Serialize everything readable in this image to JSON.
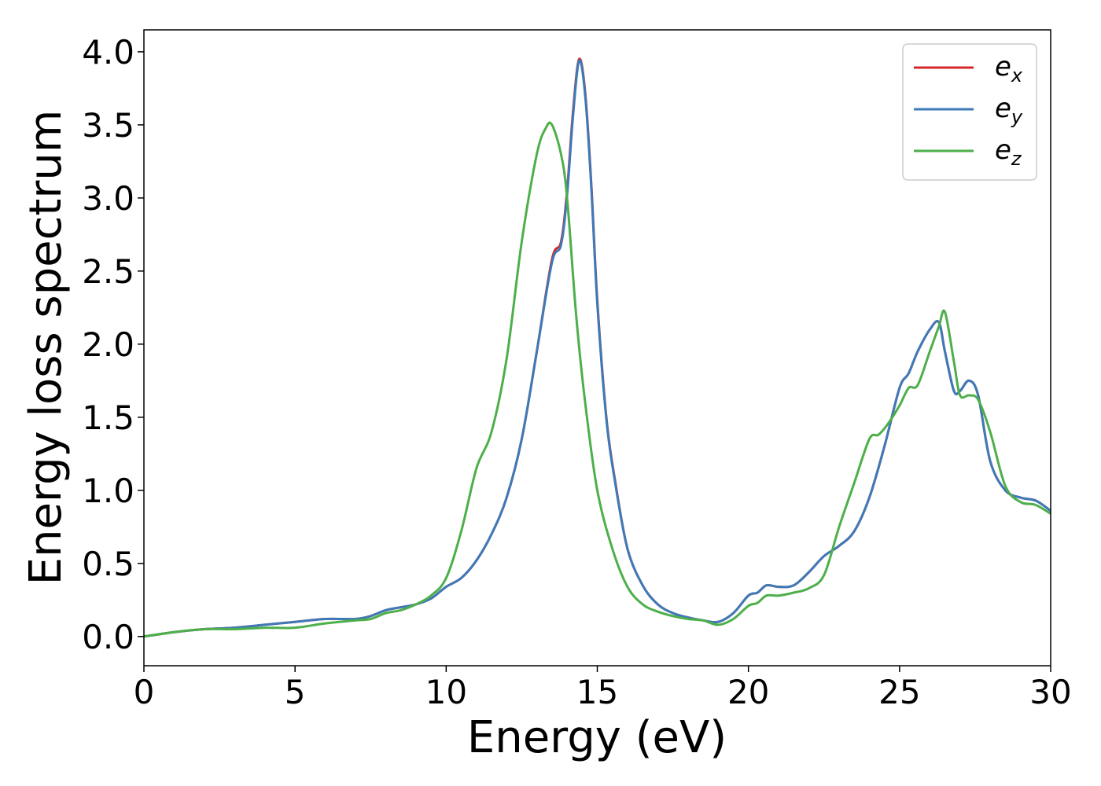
{
  "chart_data": {
    "type": "line",
    "xlabel": "Energy (eV)",
    "ylabel": "Energy loss spectrum",
    "xlim": [
      0,
      30
    ],
    "ylim": [
      -0.2,
      4.15
    ],
    "xticks": [
      0,
      5,
      10,
      15,
      20,
      25,
      30
    ],
    "xtick_labels": [
      "0",
      "5",
      "10",
      "15",
      "20",
      "25",
      "30"
    ],
    "yticks": [
      0.0,
      0.5,
      1.0,
      1.5,
      2.0,
      2.5,
      3.0,
      3.5,
      4.0
    ],
    "ytick_labels": [
      "0.0",
      "0.5",
      "1.0",
      "1.5",
      "2.0",
      "2.5",
      "3.0",
      "3.5",
      "4.0"
    ],
    "grid": false,
    "legend_position": "top-right",
    "series": [
      {
        "name": "e_x",
        "label_main": "e",
        "label_sub": "x",
        "color": "#d62728",
        "x": [
          0,
          1,
          2,
          3,
          4,
          5,
          6,
          7,
          7.5,
          8,
          8.5,
          9,
          9.5,
          10,
          10.5,
          11,
          11.5,
          12,
          12.5,
          13,
          13.5,
          13.8,
          14,
          14.2,
          14.4,
          14.6,
          14.8,
          15,
          15.3,
          15.6,
          16,
          16.5,
          17,
          17.5,
          18,
          18.5,
          19,
          19.5,
          20,
          20.3,
          20.6,
          21,
          21.5,
          22,
          22.5,
          23,
          23.5,
          24,
          24.5,
          25,
          25.3,
          25.6,
          26,
          26.3,
          26.5,
          26.8,
          27,
          27.3,
          27.6,
          28,
          28.5,
          29,
          29.5,
          30
        ],
        "values": [
          0.0,
          0.03,
          0.05,
          0.06,
          0.08,
          0.1,
          0.12,
          0.12,
          0.14,
          0.18,
          0.2,
          0.22,
          0.26,
          0.34,
          0.4,
          0.52,
          0.7,
          0.95,
          1.35,
          1.95,
          2.58,
          2.7,
          3.05,
          3.6,
          3.95,
          3.72,
          3.1,
          2.3,
          1.5,
          1.05,
          0.6,
          0.35,
          0.22,
          0.16,
          0.13,
          0.11,
          0.1,
          0.16,
          0.28,
          0.3,
          0.35,
          0.34,
          0.35,
          0.44,
          0.55,
          0.62,
          0.72,
          0.95,
          1.3,
          1.7,
          1.8,
          1.95,
          2.1,
          2.15,
          1.95,
          1.68,
          1.68,
          1.75,
          1.65,
          1.2,
          1.0,
          0.95,
          0.93,
          0.86
        ]
      },
      {
        "name": "e_y",
        "label_main": "e",
        "label_sub": "y",
        "color": "#3d7ab8",
        "x": [
          0,
          1,
          2,
          3,
          4,
          5,
          6,
          7,
          7.5,
          8,
          8.5,
          9,
          9.5,
          10,
          10.5,
          11,
          11.5,
          12,
          12.5,
          13,
          13.5,
          13.8,
          14,
          14.2,
          14.4,
          14.6,
          14.8,
          15,
          15.3,
          15.6,
          16,
          16.5,
          17,
          17.5,
          18,
          18.5,
          19,
          19.5,
          20,
          20.3,
          20.6,
          21,
          21.5,
          22,
          22.5,
          23,
          23.5,
          24,
          24.5,
          25,
          25.3,
          25.6,
          26,
          26.3,
          26.5,
          26.8,
          27,
          27.3,
          27.6,
          28,
          28.5,
          29,
          29.5,
          30
        ],
        "values": [
          0.0,
          0.03,
          0.05,
          0.06,
          0.08,
          0.1,
          0.12,
          0.12,
          0.14,
          0.18,
          0.2,
          0.22,
          0.26,
          0.34,
          0.4,
          0.52,
          0.7,
          0.95,
          1.35,
          1.95,
          2.56,
          2.68,
          3.02,
          3.57,
          3.94,
          3.7,
          3.08,
          2.28,
          1.49,
          1.04,
          0.6,
          0.35,
          0.22,
          0.16,
          0.13,
          0.11,
          0.1,
          0.16,
          0.28,
          0.3,
          0.35,
          0.34,
          0.35,
          0.44,
          0.55,
          0.62,
          0.72,
          0.95,
          1.3,
          1.7,
          1.8,
          1.95,
          2.1,
          2.15,
          1.95,
          1.68,
          1.68,
          1.75,
          1.65,
          1.2,
          1.0,
          0.95,
          0.93,
          0.86
        ]
      },
      {
        "name": "e_z",
        "label_main": "e",
        "label_sub": "z",
        "color": "#4daf4a",
        "x": [
          0,
          1,
          2,
          3,
          4,
          5,
          6,
          7,
          7.5,
          8,
          8.5,
          9,
          9.5,
          10,
          10.5,
          11,
          11.5,
          12,
          12.5,
          13,
          13.3,
          13.5,
          13.8,
          14,
          14.3,
          14.6,
          15,
          15.5,
          16,
          16.5,
          17,
          17.5,
          18,
          18.5,
          19,
          19.5,
          20,
          20.3,
          20.6,
          21,
          21.5,
          22,
          22.5,
          23,
          23.5,
          24,
          24.3,
          24.6,
          25,
          25.3,
          25.6,
          26,
          26.3,
          26.5,
          26.8,
          27,
          27.3,
          27.6,
          28,
          28.5,
          29,
          29.5,
          30
        ],
        "values": [
          0.0,
          0.03,
          0.05,
          0.05,
          0.06,
          0.06,
          0.09,
          0.11,
          0.12,
          0.16,
          0.18,
          0.22,
          0.28,
          0.4,
          0.72,
          1.15,
          1.4,
          1.9,
          2.7,
          3.3,
          3.48,
          3.5,
          3.3,
          3.0,
          2.2,
          1.6,
          1.0,
          0.6,
          0.34,
          0.22,
          0.17,
          0.14,
          0.12,
          0.11,
          0.08,
          0.12,
          0.21,
          0.23,
          0.28,
          0.28,
          0.3,
          0.33,
          0.42,
          0.75,
          1.05,
          1.35,
          1.38,
          1.45,
          1.58,
          1.7,
          1.72,
          1.95,
          2.12,
          2.22,
          1.88,
          1.65,
          1.65,
          1.62,
          1.4,
          1.03,
          0.92,
          0.9,
          0.84
        ]
      }
    ]
  }
}
